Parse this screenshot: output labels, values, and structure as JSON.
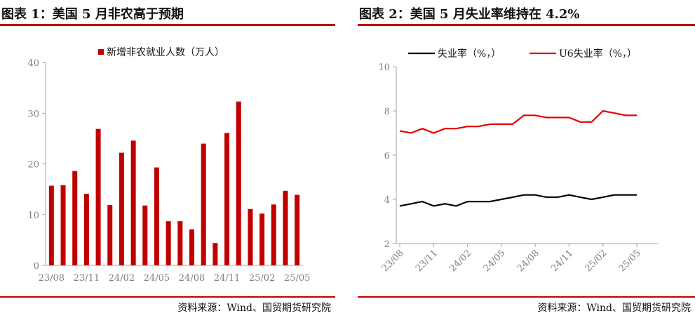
{
  "left": {
    "title": "图表 1：美国 5 月非农高于预期",
    "source": "资料来源：Wind、国贸期货研究院"
  },
  "right": {
    "title": "图表 2：美国 5 月失业率维持在 4.2%",
    "source": "资料来源：Wind、国贸期货研究院"
  },
  "chart_data": [
    {
      "type": "bar",
      "title": "",
      "xlabel": "",
      "ylabel": "",
      "ylim": [
        0,
        40
      ],
      "yticks": [
        0,
        10,
        20,
        30,
        40
      ],
      "grid": false,
      "legend_position": "top",
      "color": "#c00000",
      "categories": [
        "23/08",
        "23/09",
        "23/10",
        "23/11",
        "23/12",
        "24/01",
        "24/02",
        "24/03",
        "24/04",
        "24/05",
        "24/06",
        "24/07",
        "24/08",
        "24/09",
        "24/10",
        "24/11",
        "24/12",
        "25/01",
        "25/02",
        "25/03",
        "25/04",
        "25/05"
      ],
      "xtick_labels": [
        "23/08",
        "23/11",
        "24/02",
        "24/05",
        "24/08",
        "24/11",
        "25/02",
        "25/05"
      ],
      "series": [
        {
          "name": "新增非农就业人数（万人）",
          "values": [
            15.7,
            15.8,
            18.6,
            14.1,
            26.9,
            11.9,
            22.2,
            24.6,
            11.8,
            19.3,
            8.7,
            8.7,
            7.1,
            24.0,
            4.4,
            26.1,
            32.3,
            11.1,
            10.2,
            12.0,
            14.7,
            13.9
          ]
        }
      ]
    },
    {
      "type": "line",
      "title": "",
      "xlabel": "",
      "ylabel": "",
      "ylim": [
        2,
        10
      ],
      "yticks": [
        2,
        4,
        6,
        8,
        10
      ],
      "grid": false,
      "legend_position": "top",
      "x": [
        "23/08",
        "23/09",
        "23/10",
        "23/11",
        "23/12",
        "24/01",
        "24/02",
        "24/03",
        "24/04",
        "24/05",
        "24/06",
        "24/07",
        "24/08",
        "24/09",
        "24/10",
        "24/11",
        "24/12",
        "25/01",
        "25/02",
        "25/03",
        "25/04",
        "25/05"
      ],
      "xtick_labels": [
        "23/08",
        "23/11",
        "24/02",
        "24/05",
        "24/08",
        "24/11",
        "25/02",
        "25/05"
      ],
      "series": [
        {
          "name": "失业率（%，）",
          "color": "#000000",
          "values": [
            3.7,
            3.8,
            3.9,
            3.7,
            3.8,
            3.7,
            3.9,
            3.9,
            3.9,
            4.0,
            4.1,
            4.2,
            4.2,
            4.1,
            4.1,
            4.2,
            4.1,
            4.0,
            4.1,
            4.2,
            4.2,
            4.2
          ]
        },
        {
          "name": "U6失业率（%，）",
          "color": "#e60000",
          "values": [
            7.1,
            7.0,
            7.2,
            7.0,
            7.2,
            7.2,
            7.3,
            7.3,
            7.4,
            7.4,
            7.4,
            7.8,
            7.8,
            7.7,
            7.7,
            7.7,
            7.5,
            7.5,
            8.0,
            7.9,
            7.8,
            7.8
          ]
        }
      ]
    }
  ]
}
